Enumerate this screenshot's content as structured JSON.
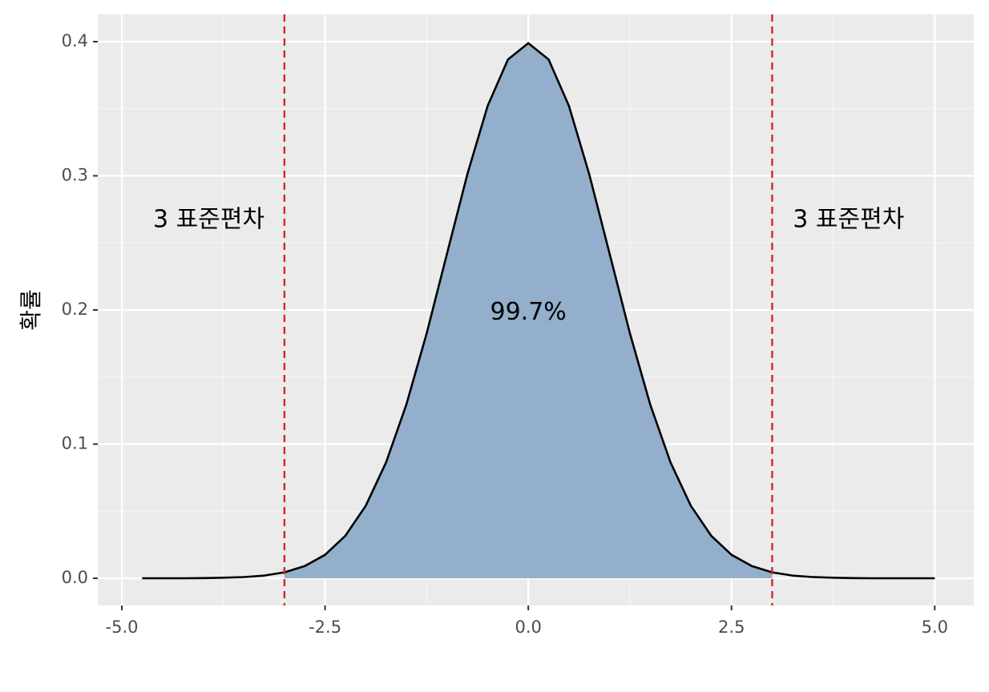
{
  "chart_data": {
    "type": "area",
    "y_label": "확률",
    "x": [
      -4.75,
      -4.5,
      -4.25,
      -4,
      -3.75,
      -3.5,
      -3.25,
      -3,
      -2.75,
      -2.5,
      -2.25,
      -2,
      -1.75,
      -1.5,
      -1.25,
      -1,
      -0.75,
      -0.5,
      -0.25,
      0,
      0.25,
      0.5,
      0.75,
      1,
      1.25,
      1.5,
      1.75,
      2,
      2.25,
      2.5,
      2.75,
      3,
      3.25,
      3.5,
      3.75,
      4,
      4.25,
      4.5,
      4.75,
      5
    ],
    "values": [
      0.0,
      0.0,
      0.0,
      0.0001,
      0.0004,
      0.0009,
      0.002,
      0.0044,
      0.0091,
      0.0175,
      0.0317,
      0.054,
      0.0863,
      0.1295,
      0.1826,
      0.242,
      0.3011,
      0.3521,
      0.3867,
      0.3989,
      0.3867,
      0.3521,
      0.3011,
      0.242,
      0.1826,
      0.1295,
      0.0863,
      0.054,
      0.0317,
      0.0175,
      0.0091,
      0.0044,
      0.002,
      0.0009,
      0.0004,
      0.0001,
      0.0,
      0.0,
      0.0,
      0.0
    ],
    "fill_color": "#8eacca",
    "line_color": "#000000",
    "vlines": [
      -3,
      3
    ],
    "vline_color": "#d62728",
    "annotations": [
      {
        "text": "3 표준편차",
        "x": -3.93,
        "y": 0.267
      },
      {
        "text": "3 표준편차",
        "x": 3.94,
        "y": 0.267
      },
      {
        "text": "99.7%",
        "x": 0.0,
        "y": 0.198
      }
    ],
    "xlim": [
      -5.296,
      5.48
    ],
    "ylim": [
      -0.0203,
      0.4203
    ],
    "xticks": [
      {
        "value": -5,
        "label": "-5.0"
      },
      {
        "value": -2.5,
        "label": "-2.5"
      },
      {
        "value": 0,
        "label": "0.0"
      },
      {
        "value": 2.5,
        "label": "2.5"
      },
      {
        "value": 5,
        "label": "5.0"
      }
    ],
    "yticks": [
      {
        "value": 0,
        "label": "0.0"
      },
      0.1,
      0.2,
      0.3,
      0.4
    ],
    "grid": true,
    "minor_grid": true
  }
}
